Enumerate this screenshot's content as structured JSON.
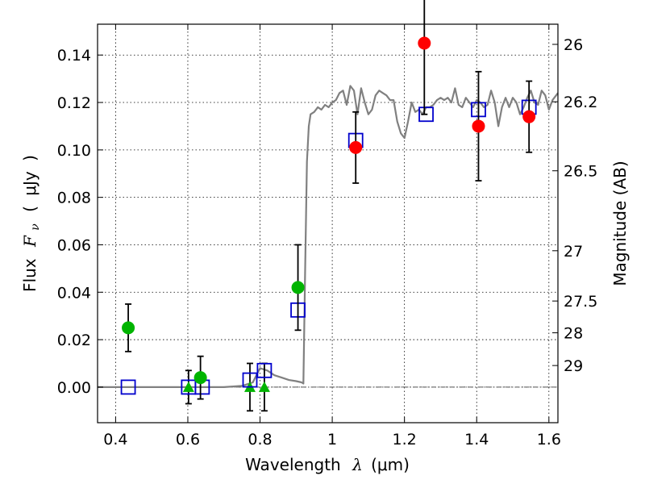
{
  "chart_data": {
    "type": "scatter",
    "xlabel": {
      "text": "Wavelength",
      "symbol": "λ",
      "unit": "(μm)"
    },
    "ylabel": {
      "text": "Flux",
      "symbol": "F",
      "subscript": "ν",
      "unit_open": "(",
      "unit": "μJy",
      "unit_close": ")"
    },
    "y2label": "Magnitude (AB)",
    "xlim": [
      0.35,
      1.625
    ],
    "ylim": [
      -0.015,
      0.153
    ],
    "xticks": [
      0.4,
      0.6,
      0.8,
      1,
      1.2,
      1.4,
      1.6
    ],
    "xtick_labels": [
      "0.4",
      "0.6",
      "0.8",
      "1",
      "1.2",
      "1.4",
      "1.6"
    ],
    "yticks": [
      0.0,
      0.02,
      0.04,
      0.06,
      0.08,
      0.1,
      0.12,
      0.14
    ],
    "ytick_labels": [
      "0.00",
      "0.02",
      "0.04",
      "0.06",
      "0.08",
      "0.10",
      "0.12",
      "0.14"
    ],
    "y2ticks": [
      {
        "label": "26",
        "flux": 0.1445
      },
      {
        "label": "26.2",
        "flux": 0.1203
      },
      {
        "label": "26.5",
        "flux": 0.0912
      },
      {
        "label": "27",
        "flux": 0.0575
      },
      {
        "label": "27.5",
        "flux": 0.0363
      },
      {
        "label": "28",
        "flux": 0.0229
      },
      {
        "label": "29",
        "flux": 0.0091
      }
    ],
    "grid": true,
    "colors": {
      "model": "#808080",
      "detection": "#ff0000",
      "green_detection": "#00b400",
      "model_band": "#0000cc",
      "errorbar": "#000000",
      "zero_line": "#555555"
    },
    "model_spectrum": {
      "name": "",
      "x": [
        0.35,
        0.5,
        0.6,
        0.7,
        0.75,
        0.78,
        0.8,
        0.82,
        0.84,
        0.86,
        0.88,
        0.9,
        0.915,
        0.92,
        0.925,
        0.93,
        0.935,
        0.94,
        0.95,
        0.96,
        0.97,
        0.98,
        0.99,
        1.0,
        1.01,
        1.02,
        1.03,
        1.04,
        1.05,
        1.06,
        1.07,
        1.08,
        1.09,
        1.1,
        1.11,
        1.12,
        1.13,
        1.14,
        1.15,
        1.16,
        1.17,
        1.18,
        1.19,
        1.2,
        1.21,
        1.22,
        1.23,
        1.24,
        1.25,
        1.26,
        1.27,
        1.28,
        1.29,
        1.3,
        1.31,
        1.32,
        1.33,
        1.34,
        1.35,
        1.36,
        1.37,
        1.38,
        1.39,
        1.4,
        1.41,
        1.42,
        1.43,
        1.44,
        1.45,
        1.46,
        1.47,
        1.48,
        1.49,
        1.5,
        1.51,
        1.52,
        1.53,
        1.54,
        1.55,
        1.56,
        1.57,
        1.58,
        1.59,
        1.6,
        1.61,
        1.625
      ],
      "y": [
        0.0,
        0.0,
        0.0,
        0.0,
        0.0005,
        0.002,
        0.008,
        0.007,
        0.005,
        0.004,
        0.003,
        0.0025,
        0.002,
        0.0015,
        0.05,
        0.095,
        0.11,
        0.115,
        0.116,
        0.118,
        0.117,
        0.119,
        0.118,
        0.12,
        0.121,
        0.124,
        0.125,
        0.119,
        0.127,
        0.125,
        0.115,
        0.126,
        0.12,
        0.115,
        0.117,
        0.123,
        0.125,
        0.124,
        0.123,
        0.121,
        0.121,
        0.112,
        0.107,
        0.105,
        0.112,
        0.12,
        0.116,
        0.117,
        0.115,
        0.118,
        0.118,
        0.119,
        0.121,
        0.122,
        0.121,
        0.122,
        0.12,
        0.126,
        0.119,
        0.118,
        0.122,
        0.12,
        0.118,
        0.121,
        0.12,
        0.118,
        0.119,
        0.125,
        0.12,
        0.11,
        0.118,
        0.122,
        0.118,
        0.122,
        0.12,
        0.115,
        0.118,
        0.122,
        0.125,
        0.12,
        0.119,
        0.125,
        0.123,
        0.117,
        0.121,
        0.124
      ]
    },
    "detections_red": [
      {
        "x": 1.065,
        "y": 0.101,
        "yerr": 0.015
      },
      {
        "x": 1.255,
        "y": 0.145,
        "yerr": 0.03
      },
      {
        "x": 1.405,
        "y": 0.11,
        "yerr": 0.023
      },
      {
        "x": 1.545,
        "y": 0.114,
        "yerr": 0.015
      }
    ],
    "detections_green": [
      {
        "x": 0.435,
        "y": 0.025,
        "yerr": 0.01
      },
      {
        "x": 0.635,
        "y": 0.004,
        "yerr": 0.009
      },
      {
        "x": 0.905,
        "y": 0.042,
        "yerr": 0.018
      }
    ],
    "upper_limits_green": [
      {
        "x": 0.602,
        "y": 0.0,
        "yerr": 0.007
      },
      {
        "x": 0.772,
        "y": 0.0,
        "yerr": 0.01
      },
      {
        "x": 0.812,
        "y": 0.0,
        "yerr": 0.01
      }
    ],
    "model_bands": [
      {
        "x": 0.435,
        "y": 0.0
      },
      {
        "x": 0.602,
        "y": 0.0
      },
      {
        "x": 0.64,
        "y": 0.0
      },
      {
        "x": 0.772,
        "y": 0.003
      },
      {
        "x": 0.812,
        "y": 0.007
      },
      {
        "x": 0.905,
        "y": 0.0325
      },
      {
        "x": 1.065,
        "y": 0.104
      },
      {
        "x": 1.26,
        "y": 0.115
      },
      {
        "x": 1.405,
        "y": 0.117
      },
      {
        "x": 1.545,
        "y": 0.118
      }
    ]
  }
}
